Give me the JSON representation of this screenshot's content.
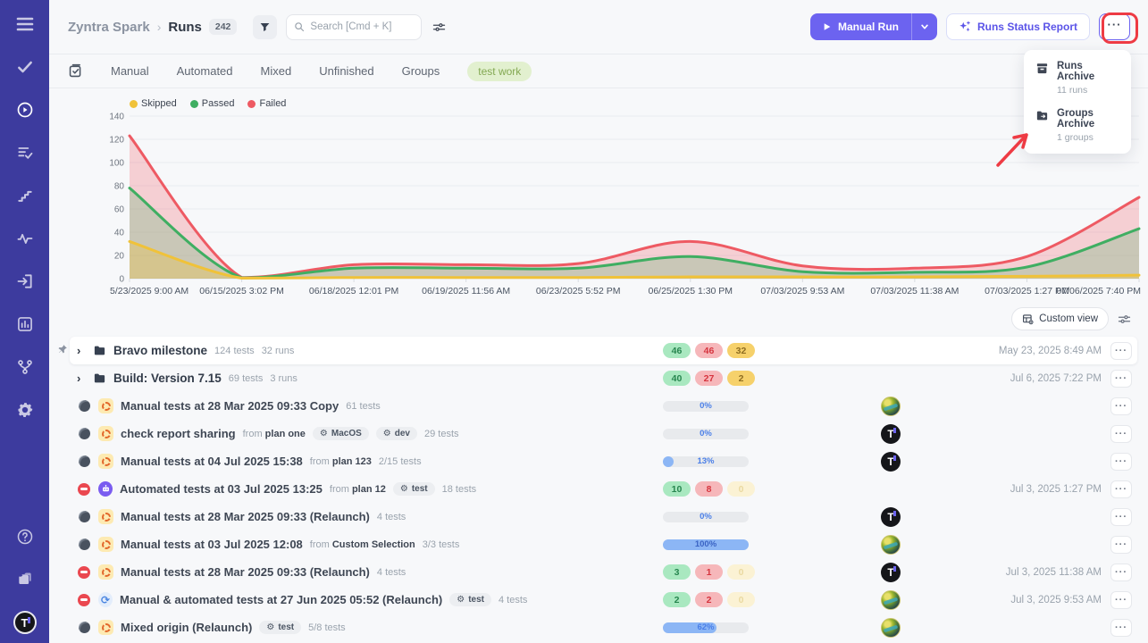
{
  "header": {
    "project": "Zyntra Spark",
    "section": "Runs",
    "count": "242",
    "search_placeholder": "Search [Cmd + K]",
    "manual_run_label": "Manual Run",
    "report_label": "Runs Status Report",
    "more_label": "..."
  },
  "menu": {
    "items": [
      {
        "icon": "archive-box-icon",
        "label": "Runs Archive",
        "sub": "11 runs"
      },
      {
        "icon": "folder-export-icon",
        "label": "Groups Archive",
        "sub": "1 groups"
      }
    ]
  },
  "tabs": [
    "Manual",
    "Automated",
    "Mixed",
    "Unfinished",
    "Groups"
  ],
  "tag": "test work",
  "toolbar": {
    "custom_view_label": "Custom view"
  },
  "chart_data": {
    "type": "area",
    "stacked": true,
    "legend": [
      {
        "label": "Skipped",
        "color": "#f0c239"
      },
      {
        "label": "Passed",
        "color": "#3fae62"
      },
      {
        "label": "Failed",
        "color": "#ee5a63"
      }
    ],
    "x_labels": [
      "5/23/2025 9:00 AM",
      "06/15/2025 3:02 PM",
      "06/18/2025 12:01 PM",
      "06/19/2025 11:56 AM",
      "06/23/2025 5:52 PM",
      "06/25/2025 1:30 PM",
      "07/03/2025 9:53 AM",
      "07/03/2025 11:38 AM",
      "07/03/2025 1:27 PM",
      "07/06/2025 7:40 PM"
    ],
    "y_ticks": [
      0,
      20,
      40,
      60,
      80,
      100,
      120,
      140
    ],
    "ylim": [
      0,
      140
    ],
    "grid": true,
    "legend_position": "top-left",
    "series_cumulative_top": {
      "failed": [
        123,
        1,
        12,
        12,
        13,
        32,
        11,
        9,
        19,
        70
      ],
      "passed": [
        78,
        0.7,
        9,
        9,
        9,
        19,
        6,
        5.5,
        10,
        43
      ],
      "skipped": [
        32,
        0.4,
        1,
        1,
        1,
        1.5,
        1.5,
        1.5,
        2,
        3
      ]
    },
    "colors": {
      "failed": "#ee5a63",
      "passed": "#3fae62",
      "skipped": "#f0c239"
    }
  },
  "runs": [
    {
      "kind": "group",
      "pinned": true,
      "highlight": true,
      "title": "Bravo milestone",
      "meta": [
        "124 tests",
        "32 runs"
      ],
      "counts": {
        "passed": "46",
        "failed": "46",
        "skipped": "32",
        "skipped_faded": false
      },
      "date": "May 23, 2025 8:49 AM"
    },
    {
      "kind": "group",
      "title": "Build: Version 7.15",
      "meta": [
        "69 tests",
        "3 runs"
      ],
      "counts": {
        "passed": "40",
        "failed": "27",
        "skipped": "2",
        "skipped_faded": false
      },
      "date": "Jul 6, 2025 7:22 PM"
    },
    {
      "kind": "run",
      "run_type": "manual",
      "title": "Manual tests at 28 Mar 2025 09:33 Copy",
      "meta": [
        "61 tests"
      ],
      "progress": {
        "label": "0%",
        "value": 0
      },
      "avatar": "planet"
    },
    {
      "kind": "run",
      "run_type": "manual",
      "title": "check report sharing",
      "from": "plan one",
      "envs": [
        "MacOS",
        "dev"
      ],
      "meta": [
        "29 tests"
      ],
      "progress": {
        "label": "0%",
        "value": 0
      },
      "avatar": "tlogo"
    },
    {
      "kind": "run",
      "run_type": "manual",
      "title": "Manual tests at 04 Jul 2025 15:38",
      "from": "plan 123",
      "meta": [
        "2/15 tests"
      ],
      "progress": {
        "label": "13%",
        "value": 13
      },
      "avatar": "tlogo"
    },
    {
      "kind": "run",
      "run_type": "automated",
      "stopped": true,
      "title": "Automated tests at 03 Jul 2025 13:25",
      "from": "plan 12",
      "envs": [
        "test"
      ],
      "meta": [
        "18 tests"
      ],
      "counts": {
        "passed": "10",
        "failed": "8",
        "skipped": "0",
        "skipped_faded": true
      },
      "date": "Jul 3, 2025 1:27 PM"
    },
    {
      "kind": "run",
      "run_type": "manual",
      "title": "Manual tests at 28 Mar 2025 09:33 (Relaunch)",
      "meta": [
        "4 tests"
      ],
      "progress": {
        "label": "0%",
        "value": 0
      },
      "avatar": "tlogo"
    },
    {
      "kind": "run",
      "run_type": "manual",
      "title": "Manual tests at 03 Jul 2025 12:08",
      "from": "Custom Selection",
      "meta": [
        "3/3 tests"
      ],
      "progress": {
        "label": "100%",
        "value": 100
      },
      "avatar": "planet"
    },
    {
      "kind": "run",
      "run_type": "manual",
      "stopped": true,
      "title": "Manual tests at 28 Mar 2025 09:33 (Relaunch)",
      "meta": [
        "4 tests"
      ],
      "counts": {
        "passed": "3",
        "failed": "1",
        "skipped": "0",
        "skipped_faded": true
      },
      "date": "Jul 3, 2025 11:38 AM",
      "avatar": "tlogo"
    },
    {
      "kind": "run",
      "run_type": "mixed",
      "stopped": true,
      "title": "Manual & automated tests at 27 Jun 2025 05:52 (Relaunch)",
      "envs": [
        "test"
      ],
      "meta": [
        "4 tests"
      ],
      "counts": {
        "passed": "2",
        "failed": "2",
        "skipped": "0",
        "skipped_faded": true
      },
      "date": "Jul 3, 2025 9:53 AM",
      "avatar": "planet"
    },
    {
      "kind": "run",
      "run_type": "manual",
      "title": "Mixed origin (Relaunch)",
      "envs": [
        "test"
      ],
      "meta": [
        "5/8 tests"
      ],
      "progress": {
        "label": "62%",
        "value": 62
      },
      "avatar": "planet"
    }
  ]
}
